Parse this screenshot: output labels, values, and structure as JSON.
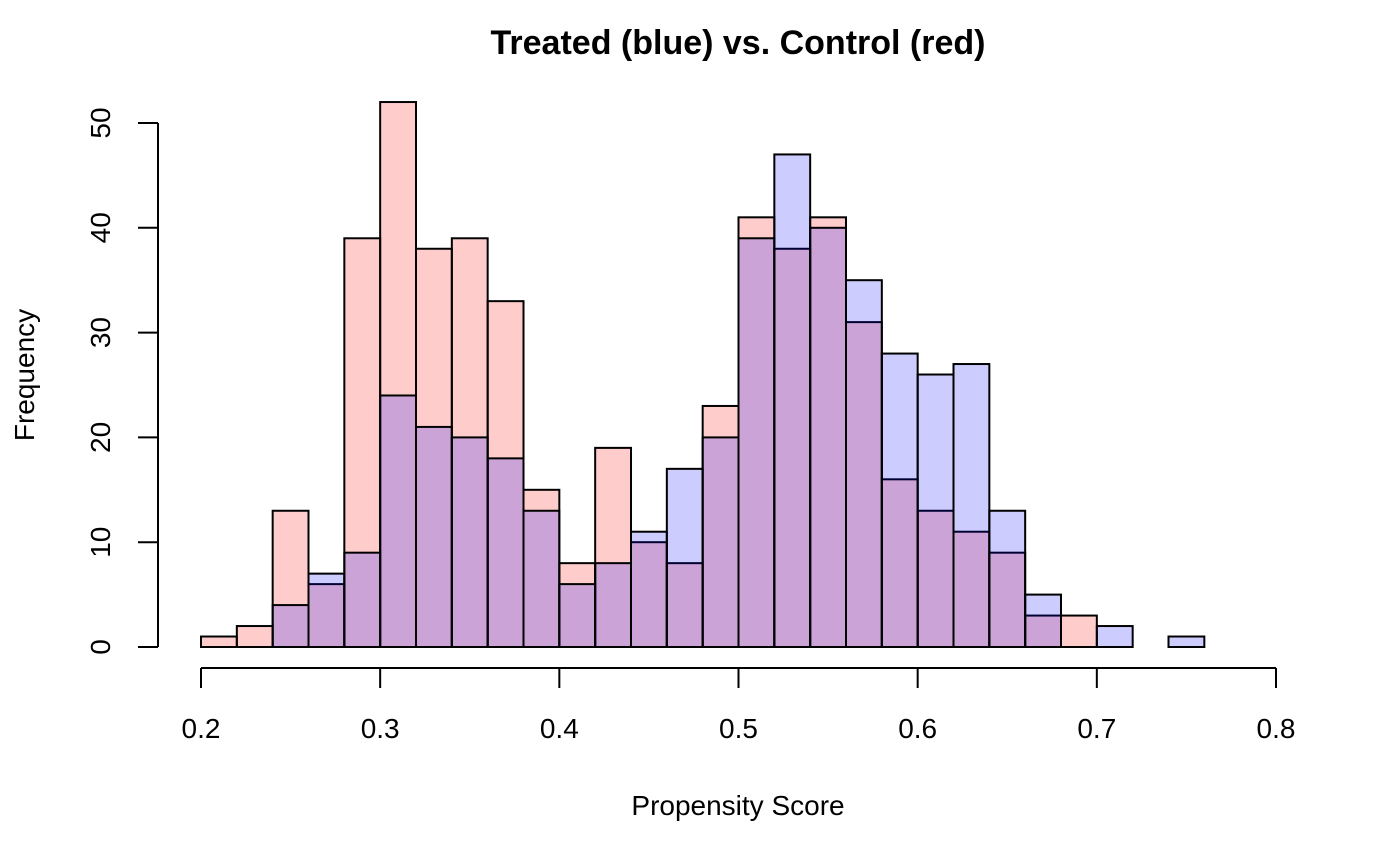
{
  "chart_data": {
    "type": "bar",
    "title": "Treated (blue) vs. Control (red)",
    "xlabel": "Propensity Score",
    "ylabel": "Frequency",
    "xlim": [
      0.2,
      0.8
    ],
    "ylim": [
      0,
      50
    ],
    "x_ticks": [
      0.2,
      0.3,
      0.4,
      0.5,
      0.6,
      0.7,
      0.8
    ],
    "x_tick_labels": [
      "0.2",
      "0.3",
      "0.4",
      "0.5",
      "0.6",
      "0.7",
      "0.8"
    ],
    "y_ticks": [
      0,
      10,
      20,
      30,
      40,
      50
    ],
    "y_tick_labels": [
      "0",
      "10",
      "20",
      "30",
      "40",
      "50"
    ],
    "bin_width": 0.02,
    "bin_starts": [
      0.2,
      0.22,
      0.24,
      0.26,
      0.28,
      0.3,
      0.32,
      0.34,
      0.36,
      0.38,
      0.4,
      0.42,
      0.44,
      0.46,
      0.48,
      0.5,
      0.52,
      0.54,
      0.56,
      0.58,
      0.6,
      0.62,
      0.64,
      0.66,
      0.68,
      0.7,
      0.72,
      0.74
    ],
    "grid": false,
    "legend": "none",
    "series": [
      {
        "color": "#FF000033",
        "values": [
          1,
          2,
          13,
          6,
          39,
          52,
          38,
          39,
          33,
          15,
          8,
          19,
          10,
          8,
          23,
          41,
          38,
          41,
          31,
          16,
          13,
          11,
          9,
          3,
          3,
          0,
          0,
          0
        ]
      },
      {
        "color": "#0000FF33",
        "values": [
          0,
          0,
          4,
          7,
          9,
          24,
          21,
          20,
          18,
          13,
          6,
          8,
          11,
          17,
          20,
          39,
          47,
          40,
          35,
          28,
          26,
          27,
          13,
          5,
          0,
          2,
          0,
          1
        ]
      }
    ]
  }
}
